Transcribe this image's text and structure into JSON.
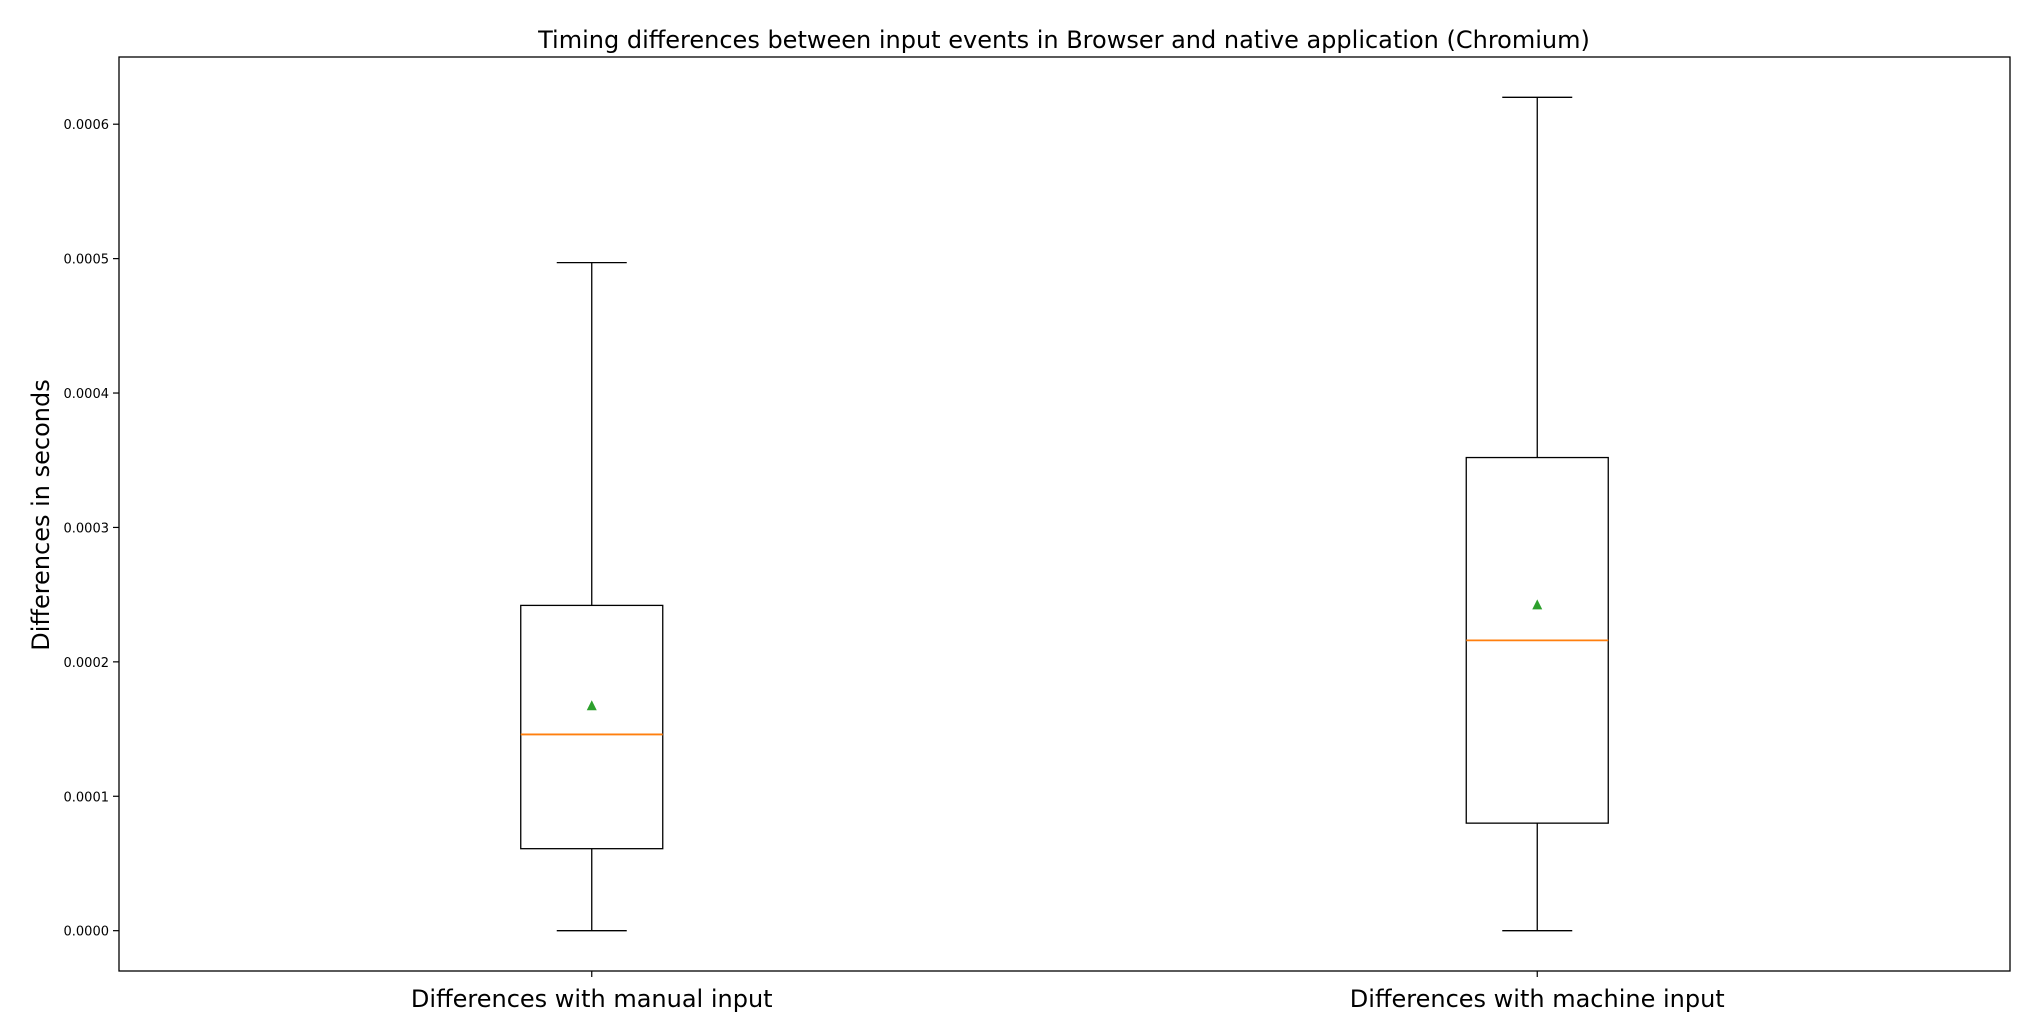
{
  "chart_data": {
    "type": "boxplot",
    "title": "Timing differences between input events in Browser and native application (Chromium)",
    "xlabel": "",
    "ylabel": "Differences in seconds",
    "ylim": [
      -3e-05,
      0.00065
    ],
    "yticks": [
      0.0,
      0.0001,
      0.0002,
      0.0003,
      0.0004,
      0.0005,
      0.0006
    ],
    "ytick_labels": [
      "0.0000",
      "0.0001",
      "0.0002",
      "0.0003",
      "0.0004",
      "0.0005",
      "0.0006"
    ],
    "grid": false,
    "legend": "none",
    "categories": [
      "Differences with manual input",
      "Differences with machine input"
    ],
    "boxes": [
      {
        "whisker_low": 0.0,
        "q1": 6.1e-05,
        "median": 0.000146,
        "q3": 0.000242,
        "whisker_high": 0.000497,
        "mean": 0.000167
      },
      {
        "whisker_low": 0.0,
        "q1": 8e-05,
        "median": 0.000216,
        "q3": 0.000352,
        "whisker_high": 0.00062,
        "mean": 0.000242
      }
    ],
    "colors": {
      "box": "#000000",
      "median": "#ff7f0e",
      "mean": "#2ca02c"
    }
  }
}
